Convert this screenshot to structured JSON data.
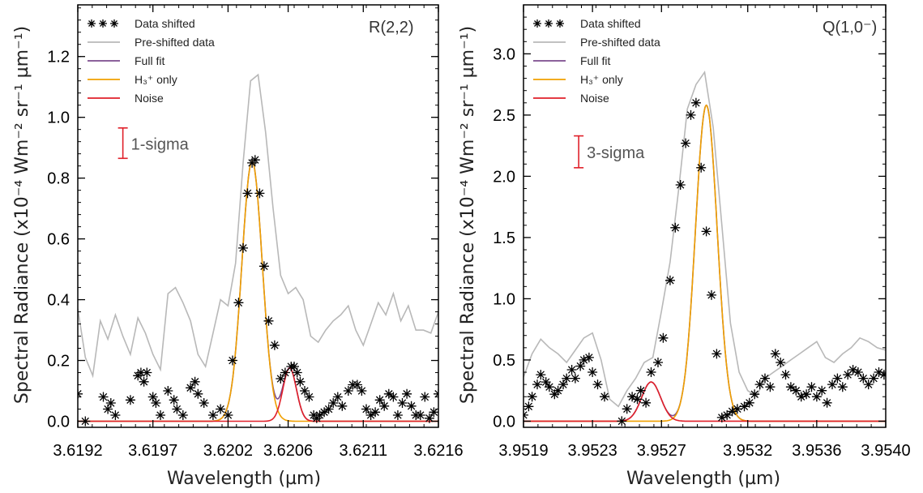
{
  "colors": {
    "data": "#000000",
    "preshift": "#b8b8b8",
    "fullfit": "#7b4b8e",
    "h3only": "#f0a000",
    "noise": "#e0202a",
    "sigma": "#e0202a"
  },
  "chart_data": [
    {
      "type": "line",
      "annotation": "R(2,2)",
      "xlabel": "Wavelength (µm)",
      "ylabel": "Spectral Radiance  (x10⁻⁴ Wm⁻² sr⁻¹ µm⁻¹)",
      "xlim": [
        3.6192,
        3.6216
      ],
      "ylim": [
        -0.02,
        1.37
      ],
      "xticks": [
        3.6192,
        3.6197,
        3.6202,
        3.6206,
        3.6211,
        3.6216
      ],
      "xtick_labels": [
        "3.6192",
        "3.6197",
        "3.6202",
        "3.6206",
        "3.6211",
        "3.6216"
      ],
      "yticks": [
        0.0,
        0.2,
        0.4,
        0.6,
        0.8,
        1.0,
        1.2
      ],
      "ytick_labels": [
        "0.0",
        "0.2",
        "0.4",
        "0.6",
        "0.8",
        "1.0",
        "1.2"
      ],
      "legend": [
        "Data shifted",
        "Pre-shifted data",
        "Full fit",
        "H₃⁺ only",
        "Noise"
      ],
      "sigma": {
        "label": "1-sigma",
        "x": 3.6195,
        "y_center": 0.915,
        "half": 0.05
      },
      "series": [
        {
          "name": "Pre-shifted data",
          "role": "preshift",
          "x": [
            3.6192,
            3.61925,
            3.6193,
            3.61935,
            3.6194,
            3.61945,
            3.6195,
            3.61955,
            3.6196,
            3.61965,
            3.6197,
            3.61975,
            3.6198,
            3.61985,
            3.6199,
            3.61995,
            3.62,
            3.62005,
            3.6201,
            3.62015,
            3.6202,
            3.62025,
            3.6203,
            3.62035,
            3.6204,
            3.62045,
            3.6205,
            3.62055,
            3.6206,
            3.62065,
            3.6207,
            3.62075,
            3.6208,
            3.62085,
            3.6209,
            3.62095,
            3.621,
            3.62105,
            3.6211,
            3.62115,
            3.6212,
            3.62125,
            3.6213,
            3.62135,
            3.6214,
            3.62145,
            3.6215,
            3.62155,
            3.6216
          ],
          "y": [
            0.37,
            0.21,
            0.15,
            0.33,
            0.27,
            0.35,
            0.28,
            0.22,
            0.34,
            0.29,
            0.22,
            0.17,
            0.42,
            0.44,
            0.39,
            0.33,
            0.22,
            0.18,
            0.29,
            0.4,
            0.38,
            0.52,
            0.85,
            1.12,
            1.14,
            0.95,
            0.7,
            0.48,
            0.42,
            0.44,
            0.4,
            0.28,
            0.26,
            0.3,
            0.33,
            0.35,
            0.38,
            0.3,
            0.25,
            0.32,
            0.39,
            0.35,
            0.42,
            0.33,
            0.38,
            0.3,
            0.3,
            0.29,
            0.36
          ]
        },
        {
          "name": "Full fit",
          "role": "fullfit",
          "kind": "fit",
          "g1": {
            "a": 0.855,
            "mu": 3.62036,
            "s": 6.8e-05
          },
          "g2": {
            "a": 0.175,
            "mu": 3.62061,
            "s": 4.5e-05
          }
        },
        {
          "name": "H₃⁺ only",
          "role": "h3only",
          "kind": "gauss",
          "g": {
            "a": 0.855,
            "mu": 3.62036,
            "s": 6.8e-05
          }
        },
        {
          "name": "Noise",
          "role": "noise",
          "kind": "gauss",
          "g": {
            "a": 0.175,
            "mu": 3.62061,
            "s": 4.5e-05
          }
        },
        {
          "name": "Data shifted",
          "role": "data",
          "kind": "points",
          "x": [
            3.6192,
            3.61925,
            3.61937,
            3.6194,
            3.61942,
            3.61945,
            3.61955,
            3.6196,
            3.61962,
            3.61964,
            3.61966,
            3.6197,
            3.61972,
            3.61975,
            3.6198,
            3.61984,
            3.61986,
            3.6199,
            3.61995,
            3.61998,
            3.62,
            3.62004,
            3.6201,
            3.62015,
            3.6202,
            3.62023,
            3.62027,
            3.6203,
            3.62033,
            3.62036,
            3.62038,
            3.62041,
            3.62044,
            3.62047,
            3.62051,
            3.62055,
            3.62058,
            3.62062,
            3.62064,
            3.62066,
            3.62068,
            3.62071,
            3.62074,
            3.62077,
            3.62079,
            3.62081,
            3.62084,
            3.62087,
            3.6209,
            3.62093,
            3.62096,
            3.621,
            3.62103,
            3.62106,
            3.62109,
            3.62112,
            3.62115,
            3.62118,
            3.62121,
            3.62124,
            3.62127,
            3.6213,
            3.62133,
            3.62136,
            3.62139,
            3.62142,
            3.62145,
            3.62148,
            3.62151,
            3.62154,
            3.62157,
            3.6216
          ],
          "y": [
            0.09,
            0.0,
            0.08,
            0.04,
            0.06,
            0.02,
            0.07,
            0.15,
            0.16,
            0.13,
            0.16,
            0.08,
            0.06,
            0.02,
            0.1,
            0.07,
            0.04,
            0.02,
            0.11,
            0.13,
            0.09,
            0.06,
            0.02,
            0.04,
            0.02,
            0.2,
            0.39,
            0.57,
            0.75,
            0.85,
            0.86,
            0.75,
            0.51,
            0.33,
            0.25,
            0.14,
            0.16,
            0.18,
            0.18,
            0.16,
            0.13,
            0.1,
            0.08,
            0.02,
            0.01,
            0.02,
            0.03,
            0.04,
            0.06,
            0.08,
            0.05,
            0.1,
            0.12,
            0.12,
            0.1,
            0.04,
            0.02,
            0.03,
            0.07,
            0.05,
            0.09,
            0.08,
            0.02,
            0.06,
            0.09,
            0.05,
            0.02,
            0.02,
            0.08,
            0.01,
            0.03,
            0.09
          ]
        }
      ]
    },
    {
      "type": "line",
      "annotation": "Q(1,0⁻)",
      "xlabel": "Wavelength (µm)",
      "ylabel": "Spectral Radiance  (x10⁻⁴ Wm⁻² sr⁻¹ µm⁻¹)",
      "xlim": [
        3.9519,
        3.954
      ],
      "ylim": [
        -0.05,
        3.4
      ],
      "xticks": [
        3.9519,
        3.9523,
        3.9527,
        3.9532,
        3.9536,
        3.954
      ],
      "xtick_labels": [
        "3.9519",
        "3.9523",
        "3.9527",
        "3.9532",
        "3.9536",
        "3.9540"
      ],
      "yticks": [
        0.0,
        0.5,
        1.0,
        1.5,
        2.0,
        2.5,
        3.0
      ],
      "ytick_labels": [
        "0.0",
        "0.5",
        "1.0",
        "1.5",
        "2.0",
        "2.5",
        "3.0"
      ],
      "legend": [
        "Data shifted",
        "Pre-shifted data",
        "Full fit",
        "H₃⁺ only",
        "Noise"
      ],
      "sigma": {
        "label": "3-sigma",
        "x": 3.95222,
        "y_center": 2.2,
        "half": 0.13
      },
      "series": [
        {
          "name": "Pre-shifted data",
          "role": "preshift",
          "x": [
            3.9519,
            3.95195,
            3.952,
            3.95205,
            3.9521,
            3.95215,
            3.9522,
            3.95225,
            3.9523,
            3.95235,
            3.9524,
            3.95245,
            3.9525,
            3.95255,
            3.9526,
            3.95265,
            3.9527,
            3.95275,
            3.9528,
            3.95285,
            3.9529,
            3.95295,
            3.953,
            3.95305,
            3.9531,
            3.95315,
            3.9532,
            3.95325,
            3.9533,
            3.95335,
            3.9534,
            3.95345,
            3.9535,
            3.95355,
            3.9536,
            3.95365,
            3.9537,
            3.95375,
            3.9538,
            3.95385,
            3.9539,
            3.95395,
            3.954
          ],
          "y": [
            0.36,
            0.55,
            0.67,
            0.6,
            0.55,
            0.48,
            0.58,
            0.68,
            0.72,
            0.5,
            0.18,
            0.12,
            0.25,
            0.35,
            0.48,
            0.52,
            0.9,
            1.3,
            1.9,
            2.55,
            2.75,
            2.85,
            2.4,
            1.6,
            0.8,
            0.4,
            0.25,
            0.2,
            0.35,
            0.4,
            0.45,
            0.5,
            0.55,
            0.6,
            0.65,
            0.52,
            0.48,
            0.55,
            0.6,
            0.68,
            0.65,
            0.6,
            0.58
          ]
        },
        {
          "name": "Full fit",
          "role": "fullfit",
          "kind": "fit",
          "g1": {
            "a": 2.58,
            "mu": 3.95296,
            "s": 6.3e-05
          },
          "g2": {
            "a": 0.32,
            "mu": 3.95264,
            "s": 5.5e-05
          }
        },
        {
          "name": "H₃⁺ only",
          "role": "h3only",
          "kind": "gauss",
          "g": {
            "a": 2.58,
            "mu": 3.95296,
            "s": 6.3e-05
          }
        },
        {
          "name": "Noise",
          "role": "noise",
          "kind": "gauss",
          "g": {
            "a": 0.32,
            "mu": 3.95264,
            "s": 5.5e-05
          }
        },
        {
          "name": "Data shifted",
          "role": "data",
          "kind": "points",
          "x": [
            3.9519,
            3.95193,
            3.95195,
            3.95198,
            3.952,
            3.95203,
            3.95205,
            3.95208,
            3.9521,
            3.95213,
            3.95215,
            3.95218,
            3.9522,
            3.95223,
            3.95225,
            3.95228,
            3.9523,
            3.95233,
            3.95237,
            3.95247,
            3.9525,
            3.95253,
            3.95256,
            3.95258,
            3.95261,
            3.95264,
            3.95268,
            3.95271,
            3.95275,
            3.95278,
            3.95281,
            3.95284,
            3.95287,
            3.9529,
            3.95293,
            3.95296,
            3.95299,
            3.95302,
            3.95305,
            3.95308,
            3.95311,
            3.95314,
            3.95318,
            3.95321,
            3.95324,
            3.95327,
            3.9533,
            3.95333,
            3.95336,
            3.95339,
            3.95342,
            3.95345,
            3.95348,
            3.95351,
            3.95354,
            3.95357,
            3.9536,
            3.95363,
            3.95366,
            3.95369,
            3.95372,
            3.95375,
            3.95378,
            3.95381,
            3.95384,
            3.95387,
            3.9539,
            3.95393,
            3.95396,
            3.95399
          ],
          "y": [
            0.05,
            0.12,
            0.2,
            0.3,
            0.38,
            0.32,
            0.28,
            0.22,
            0.25,
            0.3,
            0.35,
            0.42,
            0.35,
            0.45,
            0.5,
            0.52,
            0.4,
            0.3,
            0.2,
            0.0,
            0.1,
            0.2,
            0.18,
            0.25,
            0.15,
            0.4,
            0.48,
            0.68,
            1.15,
            1.58,
            1.93,
            2.27,
            2.5,
            2.6,
            2.07,
            1.55,
            1.03,
            0.55,
            0.03,
            0.05,
            0.08,
            0.1,
            0.12,
            0.15,
            0.22,
            0.3,
            0.35,
            0.28,
            0.55,
            0.48,
            0.38,
            0.28,
            0.25,
            0.2,
            0.22,
            0.28,
            0.2,
            0.25,
            0.15,
            0.3,
            0.35,
            0.28,
            0.38,
            0.42,
            0.4,
            0.35,
            0.3,
            0.35,
            0.4,
            0.38
          ]
        }
      ]
    }
  ]
}
